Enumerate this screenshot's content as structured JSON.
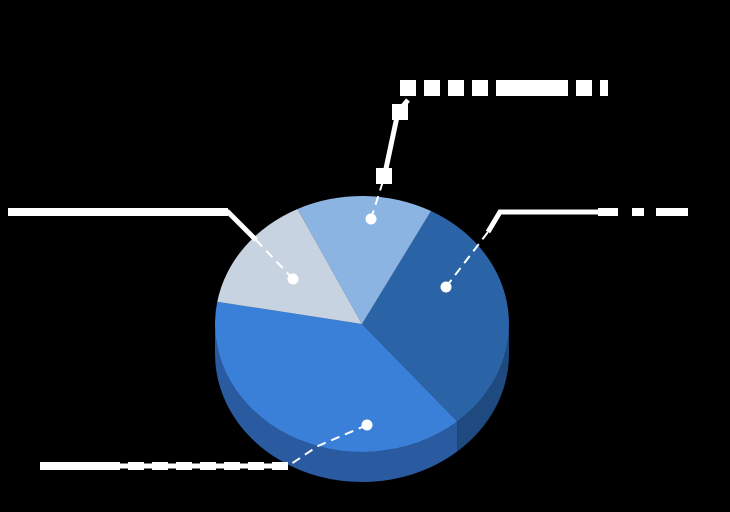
{
  "chart_data": {
    "type": "pie",
    "style": "3d",
    "title": "",
    "legend": "none",
    "slices": [
      {
        "label": "",
        "value": 31,
        "color": "#2b64a6",
        "side_color": "#1e4a80"
      },
      {
        "label": "",
        "value": 39,
        "color": "#3a7fd8",
        "side_color": "#2a5aa0"
      },
      {
        "label": "",
        "value": 15,
        "color": "#c7d3e0",
        "side_color": "#8e9cab"
      },
      {
        "label": "",
        "value": 15,
        "color": "#8cb4e2",
        "side_color": "#6d8fbe"
      }
    ],
    "data_labels": "redacted",
    "leader_lines": true,
    "background": "#000000"
  }
}
